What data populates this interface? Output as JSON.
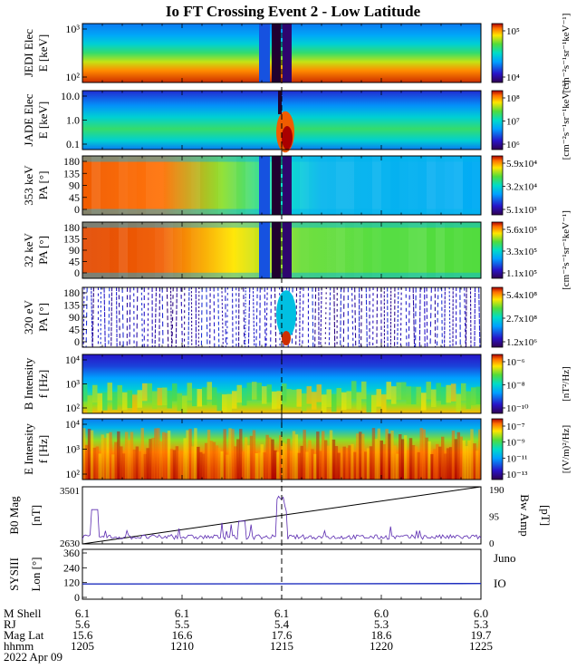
{
  "title": "Io FT Crossing Event 2 - Low Latitude",
  "colors": {
    "mag_total": "#000000",
    "bw_amp": "#5a2ab0",
    "io_trace": "#1f2fbf",
    "juno_text": "#000000",
    "io_text": "#1f2fbf"
  },
  "panels": [
    {
      "ylabel1": "JEDI Elec",
      "ylabel2": "E [keV]",
      "yticks": [
        "10³",
        "10²"
      ],
      "cb_ticks": [
        "10⁵",
        "10⁴"
      ],
      "cb_label": "[cm⁻²s⁻¹sr⁻¹keV⁻¹]"
    },
    {
      "ylabel1": "JADE Elec",
      "ylabel2": "E [keV]",
      "yticks": [
        "10.0",
        "1.0",
        "0.1"
      ],
      "cb_ticks": [
        "10⁸",
        "10⁷",
        "10⁶"
      ],
      "cb_label": "[cm⁻²s⁻¹sr⁻¹keV⁻¹]"
    },
    {
      "ylabel1": "353 keV",
      "ylabel2": "PA [°]",
      "yticks": [
        "180",
        "135",
        "90",
        "45",
        "0"
      ],
      "cb_ticks": [
        "5.9x10⁴",
        "3.2x10⁴",
        "5.1x10³"
      ],
      "cb_label": ""
    },
    {
      "ylabel1": "32 keV",
      "ylabel2": "PA [°]",
      "yticks": [
        "180",
        "135",
        "90",
        "45",
        "0"
      ],
      "cb_ticks": [
        "5.6x10⁵",
        "3.3x10⁵",
        "1.1x10⁵"
      ],
      "cb_label": "[cm⁻²s⁻¹sr⁻¹keV⁻¹]"
    },
    {
      "ylabel1": "320 eV",
      "ylabel2": "PA [°]",
      "yticks": [
        "180",
        "135",
        "90",
        "45",
        "0"
      ],
      "cb_ticks": [
        "5.4x10⁸",
        "2.7x10⁸",
        "1.2x10⁶"
      ],
      "cb_label": ""
    },
    {
      "ylabel1": "B Intensity",
      "ylabel2": "f [Hz]",
      "yticks": [
        "10⁴",
        "10³",
        "10²"
      ],
      "cb_ticks": [
        "10⁻⁶",
        "10⁻⁸",
        "10⁻¹⁰"
      ],
      "cb_label": "[nT²/Hz]"
    },
    {
      "ylabel1": "E Intensity",
      "ylabel2": "f [Hz]",
      "yticks": [
        "10⁴",
        "10³",
        "10²"
      ],
      "cb_ticks": [
        "10⁻⁷",
        "10⁻⁹",
        "10⁻¹¹",
        "10⁻¹³"
      ],
      "cb_label": "[(V/m)²/Hz]"
    }
  ],
  "mag_panel": {
    "ylabel1": "B0 Mag",
    "ylabel2": "[nT]",
    "yticks": [
      "3501",
      "2630"
    ],
    "right_ticks": [
      "190",
      "95",
      "0"
    ],
    "right_label1": "Bw Amp",
    "right_label2": "[pT]"
  },
  "sys_panel": {
    "ylabel1": "SYSIII",
    "ylabel2": "Lon [°]",
    "yticks": [
      "360",
      "240",
      "120",
      "0"
    ],
    "juno": "Juno",
    "io": "IO"
  },
  "footer": {
    "row_labels": [
      "M Shell",
      "RJ",
      "Mag Lat",
      "hhmm"
    ],
    "columns": [
      {
        "mshell": "6.1",
        "rj": "5.6",
        "maglat": "15.6",
        "hhmm": "1205"
      },
      {
        "mshell": "6.1",
        "rj": "5.5",
        "maglat": "16.6",
        "hhmm": "1210"
      },
      {
        "mshell": "6.1",
        "rj": "5.4",
        "maglat": "17.6",
        "hhmm": "1215"
      },
      {
        "mshell": "6.0",
        "rj": "5.3",
        "maglat": "18.6",
        "hhmm": "1220"
      },
      {
        "mshell": "6.0",
        "rj": "5.3",
        "maglat": "19.7",
        "hhmm": "1225"
      }
    ],
    "date": "2022 Apr 09"
  },
  "chart_data": {
    "type": "heatmap",
    "title": "Io FT Crossing Event 2 - Low Latitude",
    "x_time_ticks": [
      "1205",
      "1210",
      "1215",
      "1220",
      "1225"
    ],
    "event_time": "1215",
    "mag_series": {
      "name": "B0 Mag",
      "ylim": [
        2630,
        3501
      ],
      "x": [
        "1205",
        "1225"
      ],
      "values": [
        2630,
        3501
      ]
    },
    "bw_series": {
      "name": "Bw Amp",
      "ylim": [
        0,
        190
      ],
      "x": [
        "1205",
        "1210",
        "1213",
        "1215",
        "1217",
        "1220",
        "1225"
      ],
      "values": [
        15,
        15,
        25,
        100,
        25,
        10,
        8
      ]
    },
    "io_lon_series": {
      "name": "IO",
      "ylim": [
        0,
        360
      ],
      "x": [
        "1205",
        "1225"
      ],
      "values": [
        110,
        113
      ]
    }
  }
}
